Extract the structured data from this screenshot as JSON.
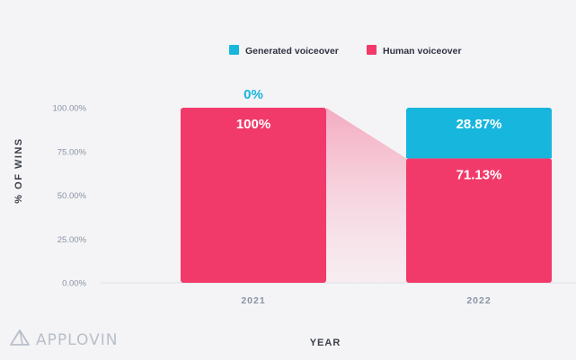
{
  "chart_data": {
    "type": "bar",
    "stacked": true,
    "categories": [
      "2021",
      "2022"
    ],
    "series": [
      {
        "name": "Human voiceover",
        "values": [
          100,
          71.13
        ],
        "labels": [
          "100%",
          "71.13%"
        ]
      },
      {
        "name": "Generated voiceover",
        "values": [
          0,
          28.87
        ],
        "labels": [
          "0%",
          "28.87%"
        ]
      }
    ],
    "ylabel": "% OF WINS",
    "xlabel": "YEAR",
    "ylim": [
      0,
      100
    ],
    "yticks": [
      {
        "value": 0,
        "label": "0.00%"
      },
      {
        "value": 25,
        "label": "25.00%"
      },
      {
        "value": 50,
        "label": "50.00%"
      },
      {
        "value": 75,
        "label": "75.00%"
      },
      {
        "value": 100,
        "label": "100.00%"
      }
    ],
    "legend": {
      "position": "top",
      "items": [
        {
          "label": "Generated voiceover",
          "color": "#17b6dd"
        },
        {
          "label": "Human voiceover",
          "color": "#f23a6a"
        }
      ]
    },
    "colors": {
      "human": "#f23a6a",
      "generated": "#17b6dd",
      "connector": "#f7bfd0"
    }
  },
  "branding": {
    "logo_text": "APPLOVIN",
    "logo_icon": "applovin-triangle-icon"
  }
}
